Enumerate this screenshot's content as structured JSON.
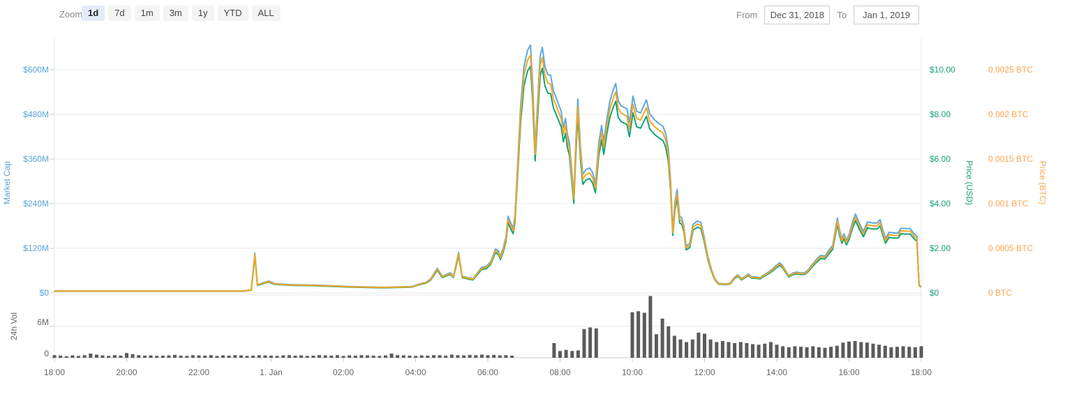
{
  "toolbar": {
    "zoom_label": "Zoom",
    "buttons": [
      {
        "label": "1d",
        "selected": true
      },
      {
        "label": "7d",
        "selected": false
      },
      {
        "label": "1m",
        "selected": false
      },
      {
        "label": "3m",
        "selected": false
      },
      {
        "label": "1y",
        "selected": false
      },
      {
        "label": "YTD",
        "selected": false
      },
      {
        "label": "ALL",
        "selected": false
      }
    ],
    "from_label": "From",
    "from_value": "Dec 31, 2018",
    "to_label": "To",
    "to_value": "Jan 1, 2019"
  },
  "axes": {
    "market_cap": {
      "title": "Market Cap",
      "color": "#55a5da",
      "ticks": [
        "$0",
        "$120M",
        "$240M",
        "$360M",
        "$480M",
        "$600M"
      ]
    },
    "price_usd": {
      "title": "Price (USD)",
      "color": "#18a07b",
      "ticks": [
        "$0",
        "$2.00",
        "$4.00",
        "$6.00",
        "$8.00",
        "$10.00"
      ]
    },
    "price_btc": {
      "title": "Price (BTC)",
      "color": "#f9a54e",
      "ticks": [
        "0 BTC",
        "0.0005 BTC",
        "0.001 BTC",
        "0.0015 BTC",
        "0.002 BTC",
        "0.0025 BTC"
      ]
    },
    "volume": {
      "title": "24h Vol",
      "color": "#666666",
      "ticks": [
        "0",
        "6M"
      ]
    },
    "x": {
      "labels": [
        "18:00",
        "20:00",
        "22:00",
        "1. Jan",
        "02:00",
        "04:00",
        "06:00",
        "08:00",
        "10:00",
        "12:00",
        "14:00",
        "16:00",
        "18:00"
      ]
    }
  },
  "chart_data": {
    "type": "line+bar",
    "x_unit": "hours after 18:00 Dec 31, 2018",
    "x_range": [
      0,
      24
    ],
    "market_cap_ylim_musd": [
      0,
      600
    ],
    "price_usd_ylim": [
      0,
      10
    ],
    "price_btc_ylim": [
      0,
      0.0025
    ],
    "volume_ylim_m": [
      0,
      12.5
    ],
    "grid": "horizontal",
    "series": [
      {
        "name": "Market Cap",
        "color": "#5ca8e0",
        "axis": "market_cap",
        "unit": "$M",
        "points": [
          [
            0,
            5
          ],
          [
            1,
            5
          ],
          [
            2,
            5
          ],
          [
            3,
            5
          ],
          [
            4,
            5
          ],
          [
            4.8,
            5
          ],
          [
            5.2,
            5
          ],
          [
            5.45,
            8
          ],
          [
            5.55,
            107
          ],
          [
            5.62,
            22
          ],
          [
            5.75,
            26
          ],
          [
            5.93,
            32
          ],
          [
            6.1,
            25
          ],
          [
            6.6,
            22
          ],
          [
            7.2,
            21
          ],
          [
            8.2,
            17
          ],
          [
            9.1,
            15
          ],
          [
            9.9,
            17
          ],
          [
            10.1,
            24
          ],
          [
            10.28,
            28
          ],
          [
            10.42,
            38
          ],
          [
            10.6,
            66
          ],
          [
            10.74,
            45
          ],
          [
            10.96,
            54
          ],
          [
            11.05,
            45
          ],
          [
            11.19,
            109
          ],
          [
            11.29,
            45
          ],
          [
            11.44,
            41
          ],
          [
            11.59,
            38
          ],
          [
            11.73,
            56
          ],
          [
            11.83,
            69
          ],
          [
            11.96,
            71
          ],
          [
            12.08,
            84
          ],
          [
            12.21,
            118
          ],
          [
            12.29,
            113
          ],
          [
            12.35,
            98
          ],
          [
            12.43,
            122
          ],
          [
            12.5,
            150
          ],
          [
            12.56,
            206
          ],
          [
            12.62,
            191
          ],
          [
            12.7,
            174
          ],
          [
            12.75,
            206
          ],
          [
            12.83,
            356
          ],
          [
            12.91,
            506
          ],
          [
            13.0,
            609
          ],
          [
            13.1,
            652
          ],
          [
            13.18,
            666
          ],
          [
            13.24,
            563
          ],
          [
            13.31,
            388
          ],
          [
            13.39,
            534
          ],
          [
            13.45,
            638
          ],
          [
            13.51,
            660
          ],
          [
            13.58,
            609
          ],
          [
            13.66,
            587
          ],
          [
            13.74,
            585
          ],
          [
            13.82,
            542
          ],
          [
            13.89,
            525
          ],
          [
            13.97,
            504
          ],
          [
            14.03,
            488
          ],
          [
            14.09,
            444
          ],
          [
            14.15,
            469
          ],
          [
            14.2,
            428
          ],
          [
            14.26,
            403
          ],
          [
            14.3,
            356
          ],
          [
            14.38,
            263
          ],
          [
            14.43,
            394
          ],
          [
            14.49,
            521
          ],
          [
            14.57,
            384
          ],
          [
            14.63,
            319
          ],
          [
            14.72,
            332
          ],
          [
            14.82,
            336
          ],
          [
            14.9,
            323
          ],
          [
            14.98,
            294
          ],
          [
            15.07,
            403
          ],
          [
            15.15,
            450
          ],
          [
            15.21,
            407
          ],
          [
            15.29,
            465
          ],
          [
            15.38,
            516
          ],
          [
            15.48,
            548
          ],
          [
            15.54,
            563
          ],
          [
            15.61,
            516
          ],
          [
            15.69,
            503
          ],
          [
            15.85,
            495
          ],
          [
            15.92,
            459
          ],
          [
            16.02,
            529
          ],
          [
            16.12,
            488
          ],
          [
            16.23,
            484
          ],
          [
            16.33,
            506
          ],
          [
            16.39,
            519
          ],
          [
            16.48,
            482
          ],
          [
            16.62,
            465
          ],
          [
            16.73,
            456
          ],
          [
            16.85,
            448
          ],
          [
            16.93,
            426
          ],
          [
            17.0,
            384
          ],
          [
            17.06,
            300
          ],
          [
            17.12,
            169
          ],
          [
            17.18,
            244
          ],
          [
            17.24,
            278
          ],
          [
            17.31,
            206
          ],
          [
            17.37,
            201
          ],
          [
            17.43,
            178
          ],
          [
            17.49,
            126
          ],
          [
            17.59,
            133
          ],
          [
            17.68,
            184
          ],
          [
            17.8,
            193
          ],
          [
            17.9,
            189
          ],
          [
            17.99,
            150
          ],
          [
            18.09,
            98
          ],
          [
            18.19,
            64
          ],
          [
            18.28,
            39
          ],
          [
            18.38,
            26
          ],
          [
            18.55,
            24
          ],
          [
            18.71,
            26
          ],
          [
            18.82,
            41
          ],
          [
            18.92,
            49
          ],
          [
            19.02,
            38
          ],
          [
            19.13,
            45
          ],
          [
            19.21,
            51
          ],
          [
            19.31,
            43
          ],
          [
            19.42,
            43
          ],
          [
            19.54,
            41
          ],
          [
            19.65,
            49
          ],
          [
            19.77,
            56
          ],
          [
            19.88,
            64
          ],
          [
            19.98,
            73
          ],
          [
            20.08,
            81
          ],
          [
            20.15,
            75
          ],
          [
            20.23,
            62
          ],
          [
            20.33,
            47
          ],
          [
            20.44,
            53
          ],
          [
            20.54,
            56
          ],
          [
            20.66,
            54
          ],
          [
            20.77,
            54
          ],
          [
            20.87,
            62
          ],
          [
            20.99,
            77
          ],
          [
            21.1,
            90
          ],
          [
            21.22,
            101
          ],
          [
            21.33,
            99
          ],
          [
            21.43,
            113
          ],
          [
            21.55,
            128
          ],
          [
            21.62,
            169
          ],
          [
            21.68,
            201
          ],
          [
            21.74,
            169
          ],
          [
            21.8,
            146
          ],
          [
            21.86,
            159
          ],
          [
            21.93,
            141
          ],
          [
            22.01,
            159
          ],
          [
            22.09,
            188
          ],
          [
            22.18,
            212
          ],
          [
            22.28,
            188
          ],
          [
            22.4,
            165
          ],
          [
            22.51,
            191
          ],
          [
            22.65,
            188
          ],
          [
            22.78,
            188
          ],
          [
            22.86,
            197
          ],
          [
            22.94,
            169
          ],
          [
            23.01,
            146
          ],
          [
            23.11,
            163
          ],
          [
            23.25,
            161
          ],
          [
            23.36,
            161
          ],
          [
            23.44,
            174
          ],
          [
            23.55,
            173
          ],
          [
            23.69,
            173
          ],
          [
            23.8,
            159
          ],
          [
            23.88,
            152
          ],
          [
            23.94,
            22
          ],
          [
            23.98,
            18
          ]
        ]
      },
      {
        "name": "Price (BTC)",
        "color": "#f5a623",
        "axis": "price_btc",
        "shape": "same as Market Cap",
        "scale_vs_marketcap": 0.96
      },
      {
        "name": "Price (USD)",
        "color": "#12a279",
        "axis": "price_usd",
        "shape": "same as Market Cap",
        "scale_vs_marketcap": 0.915
      }
    ],
    "volume": {
      "name": "24h Vol",
      "color": "#5b5b5b",
      "unit": "M",
      "interval_hours": 0.1667,
      "values": [
        0.5,
        0.4,
        0.3,
        0.45,
        0.35,
        0.5,
        0.8,
        0.6,
        0.45,
        0.35,
        0.5,
        0.4,
        0.9,
        0.7,
        0.5,
        0.4,
        0.45,
        0.35,
        0.4,
        0.45,
        0.55,
        0.4,
        0.35,
        0.5,
        0.45,
        0.4,
        0.5,
        0.35,
        0.45,
        0.4,
        0.5,
        0.45,
        0.35,
        0.4,
        0.5,
        0.45,
        0.4,
        0.35,
        0.45,
        0.5,
        0.4,
        0.45,
        0.35,
        0.4,
        0.5,
        0.45,
        0.4,
        0.5,
        0.35,
        0.45,
        0.4,
        0.5,
        0.45,
        0.4,
        0.35,
        0.45,
        0.8,
        0.5,
        0.45,
        0.4,
        0.35,
        0.45,
        0.4,
        0.5,
        0.5,
        0.4,
        0.6,
        0.5,
        0.45,
        0.55,
        0.5,
        0.6,
        0.5,
        0.55,
        0.45,
        0.5,
        0.4,
        0,
        0,
        0,
        0,
        0,
        0,
        2.8,
        1.3,
        1.5,
        1.3,
        1.4,
        5.5,
        5.8,
        5.6,
        0,
        0,
        0,
        0,
        0,
        8.7,
        8.9,
        8.6,
        11.8,
        4.5,
        7.5,
        6.0,
        4.2,
        3.5,
        3.0,
        3.5,
        4.8,
        4.6,
        3.5,
        3.0,
        3.2,
        3.0,
        2.8,
        3.0,
        2.8,
        2.6,
        2.5,
        2.7,
        3.0,
        2.5,
        2.2,
        2.0,
        2.2,
        2.1,
        2.0,
        2.2,
        2.0,
        1.9,
        2.1,
        2.3,
        2.9,
        3.1,
        3.2,
        3.0,
        2.9,
        2.7,
        2.5,
        2.3,
        2.0,
        2.1,
        2.2,
        2.1,
        2.0,
        2.2
      ]
    }
  }
}
